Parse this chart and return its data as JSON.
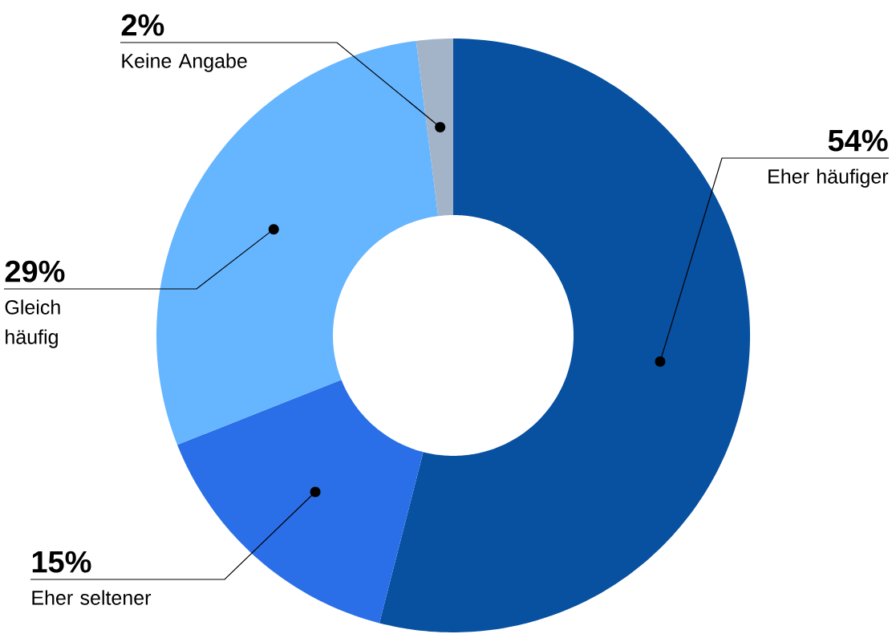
{
  "chart_data": {
    "type": "donut",
    "categories": [
      "Eher häufiger",
      "Eher seltener",
      "Gleich häufig",
      "Keine Angabe"
    ],
    "values": [
      54,
      15,
      29,
      2
    ],
    "colors": [
      "#0850a0",
      "#2a6fe8",
      "#66b5ff",
      "#a3b4c8"
    ],
    "value_labels": [
      "54%",
      "15%",
      "29%",
      "2%"
    ]
  }
}
